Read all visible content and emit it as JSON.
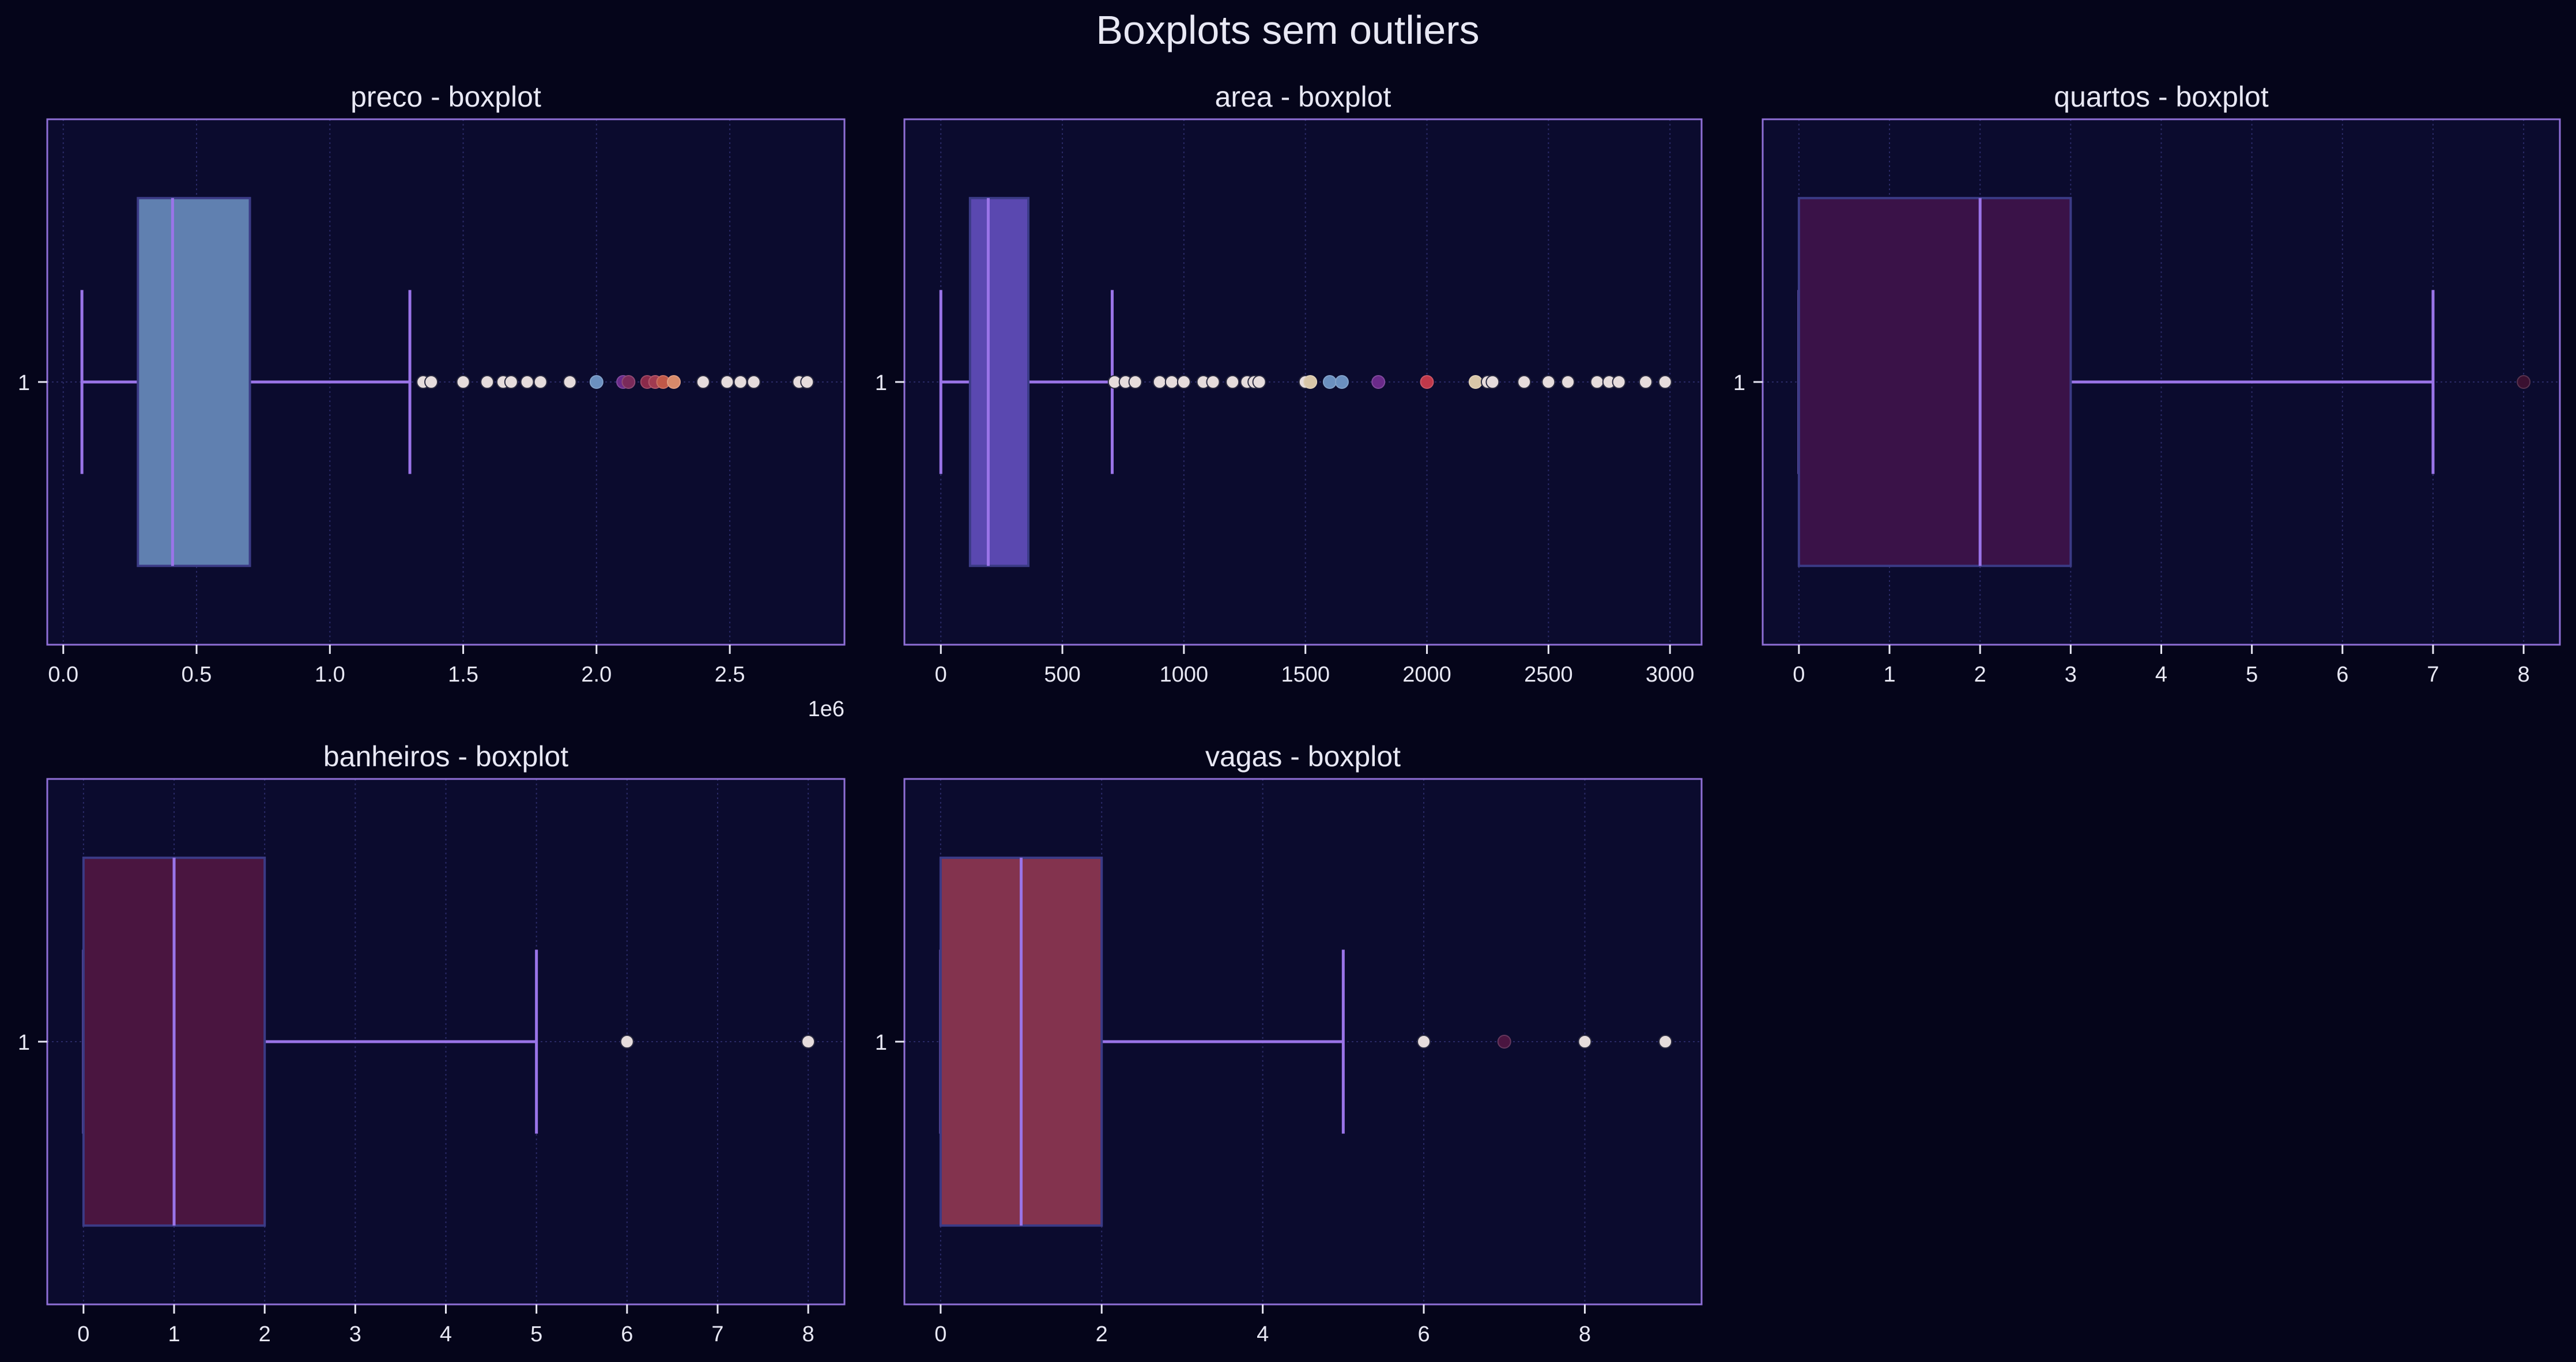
{
  "figure": {
    "title": "Boxplots sem outliers",
    "background": "#05051a",
    "axes_background": "#0b0b2e",
    "frame_color": "#8f6fd6",
    "grid_color": "#2a2a66",
    "whisker_color": "#9a74e8",
    "text_color": "#e8e8f4"
  },
  "chart_data": [
    {
      "type": "box",
      "orientation": "horizontal",
      "title": "preco - boxplot",
      "ytick": "1",
      "xlim": [
        -0.06,
        2.93
      ],
      "xticks": [
        0,
        0.5,
        1.0,
        1.5,
        2.0,
        2.5
      ],
      "xtick_labels": [
        "0.0",
        "0.5",
        "1.0",
        "1.5",
        "2.0",
        "2.5"
      ],
      "offset_label": "1e6",
      "box_color": "#6080b0",
      "box": {
        "whislo": 0.07,
        "q1": 0.28,
        "med": 0.41,
        "q3": 0.7,
        "whishi": 1.3
      },
      "fliers": [
        1.35,
        1.38,
        1.5,
        1.59,
        1.65,
        1.68,
        1.74,
        1.79,
        1.9,
        2.0,
        2.1,
        2.12,
        2.19,
        2.22,
        2.25,
        2.29,
        2.4,
        2.49,
        2.54,
        2.59,
        2.76,
        2.79
      ],
      "flier_colors": {
        "2.00": "#6b90c0",
        "2.10": "#6a2a8a",
        "2.12": "#7a2a5a",
        "2.19": "#8a2a4a",
        "2.22": "#a03a50",
        "2.25": "#c05848",
        "2.29": "#d88a6a"
      }
    },
    {
      "type": "box",
      "orientation": "horizontal",
      "title": "area - boxplot",
      "ytick": "1",
      "xlim": [
        -150,
        3130
      ],
      "xticks": [
        0,
        500,
        1000,
        1500,
        2000,
        2500,
        3000
      ],
      "xtick_labels": [
        "0",
        "500",
        "1000",
        "1500",
        "2000",
        "2500",
        "3000"
      ],
      "box_color": "#5a48b0",
      "box": {
        "whislo": 0,
        "q1": 120,
        "med": 195,
        "q3": 360,
        "whishi": 705
      },
      "fliers": [
        715,
        760,
        800,
        900,
        950,
        1000,
        1080,
        1120,
        1200,
        1260,
        1290,
        1310,
        1500,
        1520,
        1600,
        1650,
        1800,
        2000,
        2200,
        2250,
        2270,
        2400,
        2500,
        2580,
        2700,
        2750,
        2790,
        2900,
        2980
      ],
      "flier_colors": {
        "1520": "#d8c6a8",
        "1600": "#6b90c0",
        "1650": "#6b90c0",
        "1800": "#6a2a8a",
        "2000": "#c0384a",
        "2200": "#d8c6a8"
      }
    },
    {
      "type": "box",
      "orientation": "horizontal",
      "title": "quartos - boxplot",
      "ytick": "1",
      "xlim": [
        -0.4,
        8.4
      ],
      "xticks": [
        0,
        1,
        2,
        3,
        4,
        5,
        6,
        7,
        8
      ],
      "xtick_labels": [
        "0",
        "1",
        "2",
        "3",
        "4",
        "5",
        "6",
        "7",
        "8"
      ],
      "box_color": "#3a1248",
      "box": {
        "whislo": 0,
        "q1": 0,
        "med": 2,
        "q3": 3,
        "whishi": 7
      },
      "fliers": [
        8
      ],
      "flier_colors": {
        "8": "#3a1030"
      }
    },
    {
      "type": "box",
      "orientation": "horizontal",
      "title": "banheiros - boxplot",
      "ytick": "1",
      "xlim": [
        -0.4,
        8.4
      ],
      "xticks": [
        0,
        1,
        2,
        3,
        4,
        5,
        6,
        7,
        8
      ],
      "xtick_labels": [
        "0",
        "1",
        "2",
        "3",
        "4",
        "5",
        "6",
        "7",
        "8"
      ],
      "box_color": "#4a1540",
      "box": {
        "whislo": 0,
        "q1": 0,
        "med": 1,
        "q3": 2,
        "whishi": 5
      },
      "fliers": [
        6,
        8
      ],
      "flier_colors": {}
    },
    {
      "type": "box",
      "orientation": "horizontal",
      "title": "vagas - boxplot",
      "ytick": "1",
      "xlim": [
        -0.45,
        9.45
      ],
      "xticks": [
        0,
        2,
        4,
        6,
        8
      ],
      "xtick_labels": [
        "0",
        "2",
        "4",
        "6",
        "8"
      ],
      "box_color": "#83334e",
      "box": {
        "whislo": 0,
        "q1": 0,
        "med": 1,
        "q3": 2,
        "whishi": 5
      },
      "fliers": [
        6,
        7,
        8,
        9
      ],
      "flier_colors": {
        "7": "#4a1540"
      }
    }
  ]
}
